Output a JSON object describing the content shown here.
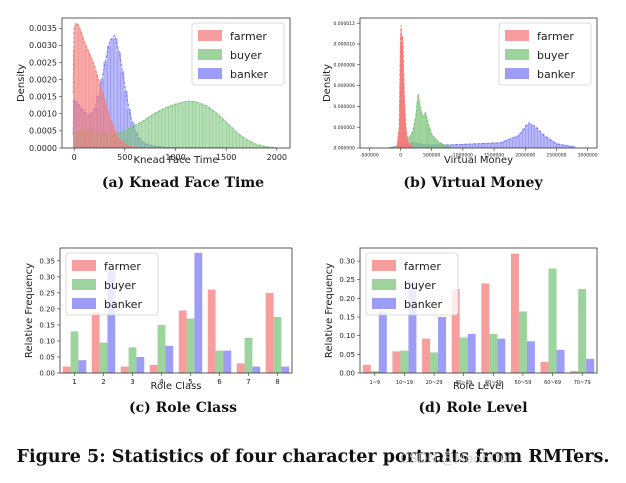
{
  "caption": "Figure 5: Statistics of four character portraits from RMTers.",
  "watermark": "CSDN @MoonOut",
  "colors": {
    "farmer": "#f47c7c",
    "buyer": "#7cc47c",
    "banker": "#7c7cf4"
  },
  "chart_data": [
    {
      "type": "area",
      "id": "a",
      "subcaption": "(a) Knead Face Time",
      "xlabel": "Knead Face Time",
      "ylabel": "Density",
      "xlim": [
        -120,
        2130
      ],
      "ylim": [
        0,
        0.0038
      ],
      "xticks": [
        0,
        500,
        1000,
        1500,
        2000
      ],
      "xtick_labels": [
        "0",
        "500",
        "1000",
        "1500",
        "2000"
      ],
      "yticks": [
        0,
        0.0005,
        0.001,
        0.0015,
        0.002,
        0.0025,
        0.003,
        0.0035
      ],
      "ytick_labels": [
        "0.0000",
        "0.0005",
        "0.0010",
        "0.0015",
        "0.0020",
        "0.0025",
        "0.0030",
        "0.0035"
      ],
      "legend": [
        "farmer",
        "buyer",
        "banker"
      ],
      "legend_position": "top-right",
      "series": [
        {
          "name": "banker",
          "x": [
            -10,
            0,
            50,
            100,
            150,
            200,
            250,
            300,
            350,
            400,
            450,
            500,
            550,
            600,
            650,
            700,
            800,
            900,
            1000,
            1200,
            1400,
            1600,
            1800,
            2000
          ],
          "values": [
            0.0004,
            0.0014,
            0.00125,
            0.00105,
            0.00095,
            0.0011,
            0.0016,
            0.0024,
            0.0031,
            0.0033,
            0.0027,
            0.0018,
            0.001,
            0.0005,
            0.00025,
            0.00012,
            5e-05,
            2e-05,
            1e-05,
            1e-05,
            1e-05,
            0.0,
            0.0,
            0.0
          ]
        },
        {
          "name": "buyer",
          "x": [
            0,
            100,
            200,
            300,
            400,
            500,
            600,
            700,
            800,
            900,
            1000,
            1100,
            1150,
            1200,
            1300,
            1400,
            1500,
            1600,
            1700,
            1800,
            1900,
            2000
          ],
          "values": [
            0.00045,
            0.00055,
            0.00048,
            0.00042,
            0.00042,
            0.0005,
            0.00065,
            0.00082,
            0.00102,
            0.00117,
            0.00128,
            0.00136,
            0.00137,
            0.00135,
            0.00124,
            0.00103,
            0.00075,
            0.00046,
            0.00024,
            0.0001,
            3e-05,
            1e-05
          ]
        },
        {
          "name": "farmer",
          "x": [
            -10,
            0,
            20,
            40,
            60,
            80,
            100,
            130,
            160,
            200,
            250,
            300,
            350,
            400,
            450,
            500,
            550,
            600,
            700,
            800
          ],
          "values": [
            0.0016,
            0.0035,
            0.00365,
            0.0036,
            0.00345,
            0.0033,
            0.0031,
            0.0029,
            0.0027,
            0.0024,
            0.0019,
            0.0014,
            0.0009,
            0.0005,
            0.00025,
            0.0001,
            5e-05,
            2e-05,
            1e-05,
            0.0
          ]
        }
      ]
    },
    {
      "type": "area",
      "id": "b",
      "subcaption": "(b) Virtual Money",
      "xlabel": "Virtual Money",
      "ylabel": "Density",
      "xlim": [
        -650000,
        3150000
      ],
      "ylim": [
        0,
        1.25e-05
      ],
      "xticks": [
        -500000,
        0,
        500000,
        1000000,
        1500000,
        2000000,
        2500000,
        3000000
      ],
      "xtick_labels": [
        "-500000",
        "0",
        "500000",
        "1000000",
        "1500000",
        "2000000",
        "2500000",
        "3000000"
      ],
      "yticks": [
        0,
        2e-06,
        4e-06,
        6e-06,
        8e-06,
        1e-05,
        1.2e-05
      ],
      "ytick_labels": [
        "0.000000",
        "0.000002",
        "0.000004",
        "0.000006",
        "0.000008",
        "0.000010",
        "0.000012"
      ],
      "legend": [
        "farmer",
        "buyer",
        "banker"
      ],
      "legend_position": "top-right",
      "series": [
        {
          "name": "banker",
          "x": [
            -200000,
            0,
            200000,
            400000,
            800000,
            1200000,
            1600000,
            1900000,
            2050000,
            2150000,
            2300000,
            2500000,
            2800000
          ],
          "values": [
            0.0,
            2e-07,
            5e-07,
            3e-07,
            3e-07,
            4e-07,
            5e-07,
            1.2e-06,
            2.4e-06,
            2.1e-06,
            1.2e-06,
            4e-07,
            1e-07
          ]
        },
        {
          "name": "buyer",
          "x": [
            -100000,
            0,
            80000,
            150000,
            200000,
            250000,
            280000,
            320000,
            360000,
            400000,
            450000,
            500000,
            600000,
            700000,
            800000
          ],
          "values": [
            0.0,
            5e-07,
            7e-07,
            1.1e-06,
            1.6e-06,
            3.2e-06,
            5.2e-06,
            3.8e-06,
            3e-06,
            3.4e-06,
            2.2e-06,
            1.3e-06,
            6e-07,
            3e-07,
            1e-07
          ]
        },
        {
          "name": "farmer",
          "x": [
            -60000,
            -20000,
            0,
            10000,
            20000,
            30000,
            40000,
            50000,
            60000,
            80000,
            100000,
            130000,
            200000
          ],
          "values": [
            0.0,
            2e-06,
            1.05e-05,
            1.18e-05,
            8.4e-06,
            1.08e-05,
            9.8e-06,
            7.2e-06,
            5e-06,
            2.5e-06,
            1.2e-06,
            4e-07,
            1e-07
          ]
        }
      ]
    },
    {
      "type": "bar",
      "id": "c",
      "subcaption": "(c) Role Class",
      "xlabel": "Role Class",
      "ylabel": "Relative Frequency",
      "categories": [
        "1",
        "2",
        "3",
        "4",
        "5",
        "6",
        "7",
        "8"
      ],
      "ylim": [
        0,
        0.39
      ],
      "yticks": [
        0,
        0.05,
        0.1,
        0.15,
        0.2,
        0.25,
        0.3,
        0.35
      ],
      "ytick_labels": [
        "0.00",
        "0.05",
        "0.10",
        "0.15",
        "0.20",
        "0.25",
        "0.30",
        "0.35"
      ],
      "legend": [
        "farmer",
        "buyer",
        "banker"
      ],
      "legend_position": "top-left",
      "series": [
        {
          "name": "farmer",
          "values": [
            0.02,
            0.19,
            0.02,
            0.025,
            0.195,
            0.26,
            0.03,
            0.25
          ]
        },
        {
          "name": "buyer",
          "values": [
            0.13,
            0.095,
            0.08,
            0.15,
            0.17,
            0.07,
            0.11,
            0.175
          ]
        },
        {
          "name": "banker",
          "values": [
            0.04,
            0.32,
            0.05,
            0.085,
            0.375,
            0.07,
            0.02,
            0.02
          ]
        }
      ]
    },
    {
      "type": "bar",
      "id": "d",
      "subcaption": "(d) Role Level",
      "xlabel": "Role Level",
      "ylabel": "Relative Frequency",
      "categories": [
        "1~9",
        "10~19",
        "20~29",
        "30~39",
        "40~49",
        "50~59",
        "60~69",
        "70~79"
      ],
      "ylim": [
        0,
        0.335
      ],
      "yticks": [
        0,
        0.05,
        0.1,
        0.15,
        0.2,
        0.25,
        0.3
      ],
      "ytick_labels": [
        "0.00",
        "0.05",
        "0.10",
        "0.15",
        "0.20",
        "0.25",
        "0.30"
      ],
      "legend": [
        "farmer",
        "buyer",
        "banker"
      ],
      "legend_position": "top-left",
      "series": [
        {
          "name": "farmer",
          "values": [
            0.022,
            0.058,
            0.092,
            0.225,
            0.24,
            0.32,
            0.03,
            0.005
          ]
        },
        {
          "name": "buyer",
          "values": [
            0.005,
            0.06,
            0.055,
            0.095,
            0.105,
            0.165,
            0.28,
            0.225
          ]
        },
        {
          "name": "banker",
          "values": [
            0.165,
            0.245,
            0.15,
            0.105,
            0.092,
            0.085,
            0.062,
            0.038
          ]
        }
      ]
    }
  ]
}
